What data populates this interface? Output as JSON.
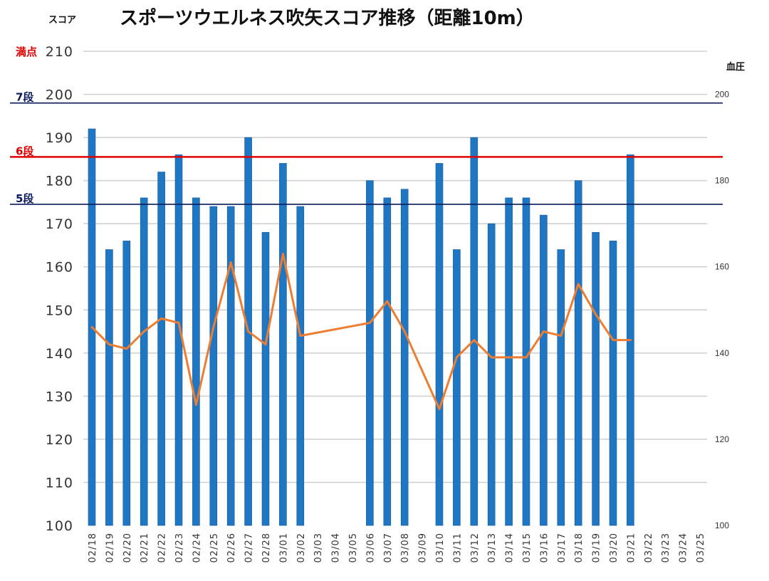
{
  "chart_data": {
    "type": "bar",
    "title": "スポーツウエルネス吹矢スコア推移（距離10m）",
    "ylabel": "スコア",
    "y2label": "血圧",
    "ylim": [
      100,
      210
    ],
    "y2lim": [
      100,
      210
    ],
    "yticks": [
      100,
      110,
      120,
      130,
      140,
      150,
      160,
      170,
      180,
      190,
      200,
      210
    ],
    "y2ticks": [
      100,
      120,
      140,
      160,
      180,
      200
    ],
    "grid": true,
    "categories": [
      "02/18",
      "02/19",
      "02/20",
      "02/21",
      "02/22",
      "02/23",
      "02/24",
      "02/25",
      "02/26",
      "02/27",
      "02/28",
      "03/01",
      "03/02",
      "03/03",
      "03/04",
      "03/05",
      "03/06",
      "03/07",
      "03/08",
      "03/09",
      "03/10",
      "03/11",
      "03/12",
      "03/13",
      "03/14",
      "03/15",
      "03/16",
      "03/17",
      "03/18",
      "03/19",
      "03/20",
      "03/21",
      "03/22",
      "03/23",
      "03/24",
      "03/25"
    ],
    "series": [
      {
        "type": "bar",
        "color": "#1f77c4",
        "values": [
          192,
          164,
          166,
          176,
          182,
          186,
          176,
          174,
          174,
          190,
          168,
          184,
          174,
          null,
          null,
          null,
          180,
          176,
          178,
          null,
          184,
          164,
          190,
          170,
          176,
          176,
          172,
          164,
          180,
          168,
          166,
          186,
          null,
          null,
          null,
          null
        ]
      },
      {
        "type": "line",
        "axis": "right",
        "color": "#ed7d31",
        "values": [
          146,
          142,
          141,
          145,
          148,
          147,
          128,
          146,
          161,
          145,
          142,
          163,
          144,
          null,
          null,
          null,
          147,
          152,
          145,
          null,
          127,
          139,
          143,
          139,
          139,
          139,
          145,
          144,
          156,
          149,
          143,
          143,
          null,
          null,
          null,
          null
        ]
      }
    ],
    "reference_lines": [
      {
        "label": "満点",
        "value": 210,
        "color": "#e00000"
      },
      {
        "label": "7段",
        "value": 198,
        "color": "#0a1a5c"
      },
      {
        "label": "6段",
        "value": 185.5,
        "color": "#e00000"
      },
      {
        "label": "5段",
        "value": 174.5,
        "color": "#0a1a5c"
      }
    ]
  }
}
